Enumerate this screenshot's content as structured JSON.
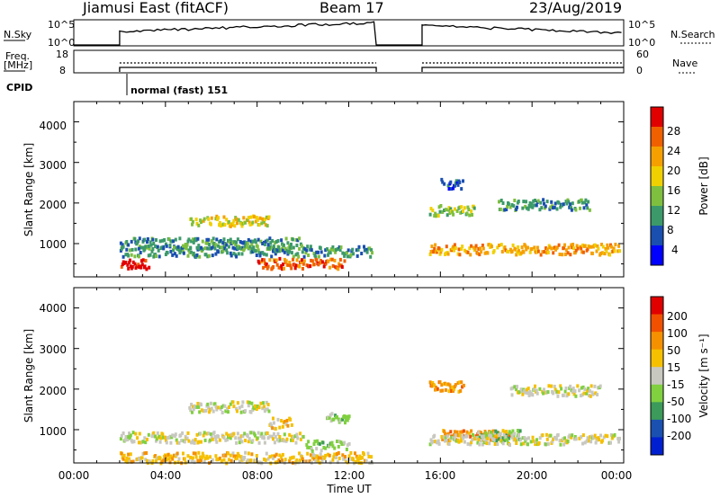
{
  "header": {
    "station": "Jiamusi East (fitACF)",
    "beam": "Beam 17",
    "date": "23/Aug/2019"
  },
  "top_panels": {
    "nsky_label": "N.Sky",
    "nsky_ticks": [
      "10^5",
      "10^0"
    ],
    "nsearch_label": "N.Search",
    "nsearch_ticks": [
      "10^5",
      "10^0"
    ],
    "freq_label_1": "Freq.",
    "freq_label_2": "[MHz]",
    "freq_ticks": [
      "18",
      "8"
    ],
    "nave_label": "Nave",
    "nave_ticks": [
      "60",
      "0"
    ],
    "cpid_label": "CPID",
    "cpid_value": "normal (fast) 151"
  },
  "x_axis": {
    "label": "Time UT",
    "ticks": [
      "00:00",
      "04:00",
      "08:00",
      "12:00",
      "16:00",
      "20:00",
      "00:00"
    ]
  },
  "colors": {
    "power": [
      "#0000ff",
      "#1a4fb0",
      "#3c9a6a",
      "#7fbf3f",
      "#f0d000",
      "#f5a000",
      "#f06000",
      "#e00000"
    ],
    "velocity": [
      "#e00000",
      "#f05000",
      "#f59000",
      "#f5c000",
      "#c8c8c0",
      "#80d040",
      "#3c9a5a",
      "#1a50b0",
      "#0020d0"
    ]
  },
  "chart_data": [
    {
      "type": "heatmap",
      "ylabel": "Slant Range [km]",
      "xlabel": "",
      "yticks": [
        "1000",
        "2000",
        "3000",
        "4000"
      ],
      "ylim": [
        180,
        4500
      ],
      "x_range_hours": [
        0,
        24
      ],
      "colorbar_label": "Power [dB]",
      "colorbar_ticks": [
        "4",
        "8",
        "12",
        "16",
        "20",
        "24",
        "28"
      ],
      "data_gap_hours": [
        13.2,
        15.2
      ],
      "bands": [
        {
          "x0": 2.0,
          "x1": 3.3,
          "range_km": 480,
          "level": 7
        },
        {
          "x0": 2.0,
          "x1": 13.0,
          "range_km": 800,
          "level": 2
        },
        {
          "x0": 2.0,
          "x1": 10.0,
          "range_km": 1000,
          "level": 2
        },
        {
          "x0": 5.0,
          "x1": 8.5,
          "range_km": 1550,
          "level": 4
        },
        {
          "x0": 8.0,
          "x1": 11.8,
          "range_km": 500,
          "level": 6
        },
        {
          "x0": 15.5,
          "x1": 23.8,
          "range_km": 850,
          "level": 5
        },
        {
          "x0": 15.5,
          "x1": 17.5,
          "range_km": 1800,
          "level": 3
        },
        {
          "x0": 18.5,
          "x1": 22.5,
          "range_km": 1950,
          "level": 2
        },
        {
          "x0": 16.0,
          "x1": 17.0,
          "range_km": 2450,
          "level": 1
        }
      ]
    },
    {
      "type": "heatmap",
      "ylabel": "Slant Range [km]",
      "xlabel": "Time UT",
      "yticks": [
        "1000",
        "2000",
        "3000",
        "4000"
      ],
      "ylim": [
        180,
        4500
      ],
      "x_range_hours": [
        0,
        24
      ],
      "colorbar_label": "Velocity [m s⁻¹]",
      "colorbar_ticks": [
        "200",
        "100",
        "50",
        "15",
        "-15",
        "-50",
        "-100",
        "-200"
      ],
      "data_gap_hours": [
        13.2,
        15.2
      ],
      "bands": [
        {
          "x0": 2.0,
          "x1": 10.0,
          "range_km": 800,
          "level": 4
        },
        {
          "x0": 2.0,
          "x1": 13.0,
          "range_km": 300,
          "level": 3
        },
        {
          "x0": 5.0,
          "x1": 8.5,
          "range_km": 1550,
          "level": 4
        },
        {
          "x0": 8.5,
          "x1": 9.5,
          "range_km": 1150,
          "level": 3
        },
        {
          "x0": 10.0,
          "x1": 12.0,
          "range_km": 600,
          "level": 5
        },
        {
          "x0": 11.0,
          "x1": 12.0,
          "range_km": 1300,
          "level": 5
        },
        {
          "x0": 16.0,
          "x1": 19.0,
          "range_km": 850,
          "level": 2
        },
        {
          "x0": 17.5,
          "x1": 19.5,
          "range_km": 850,
          "level": 5
        },
        {
          "x0": 15.5,
          "x1": 17.0,
          "range_km": 2050,
          "level": 2
        },
        {
          "x0": 15.5,
          "x1": 23.8,
          "range_km": 750,
          "level": 4
        },
        {
          "x0": 19.0,
          "x1": 23.0,
          "range_km": 1950,
          "level": 4
        }
      ]
    }
  ]
}
